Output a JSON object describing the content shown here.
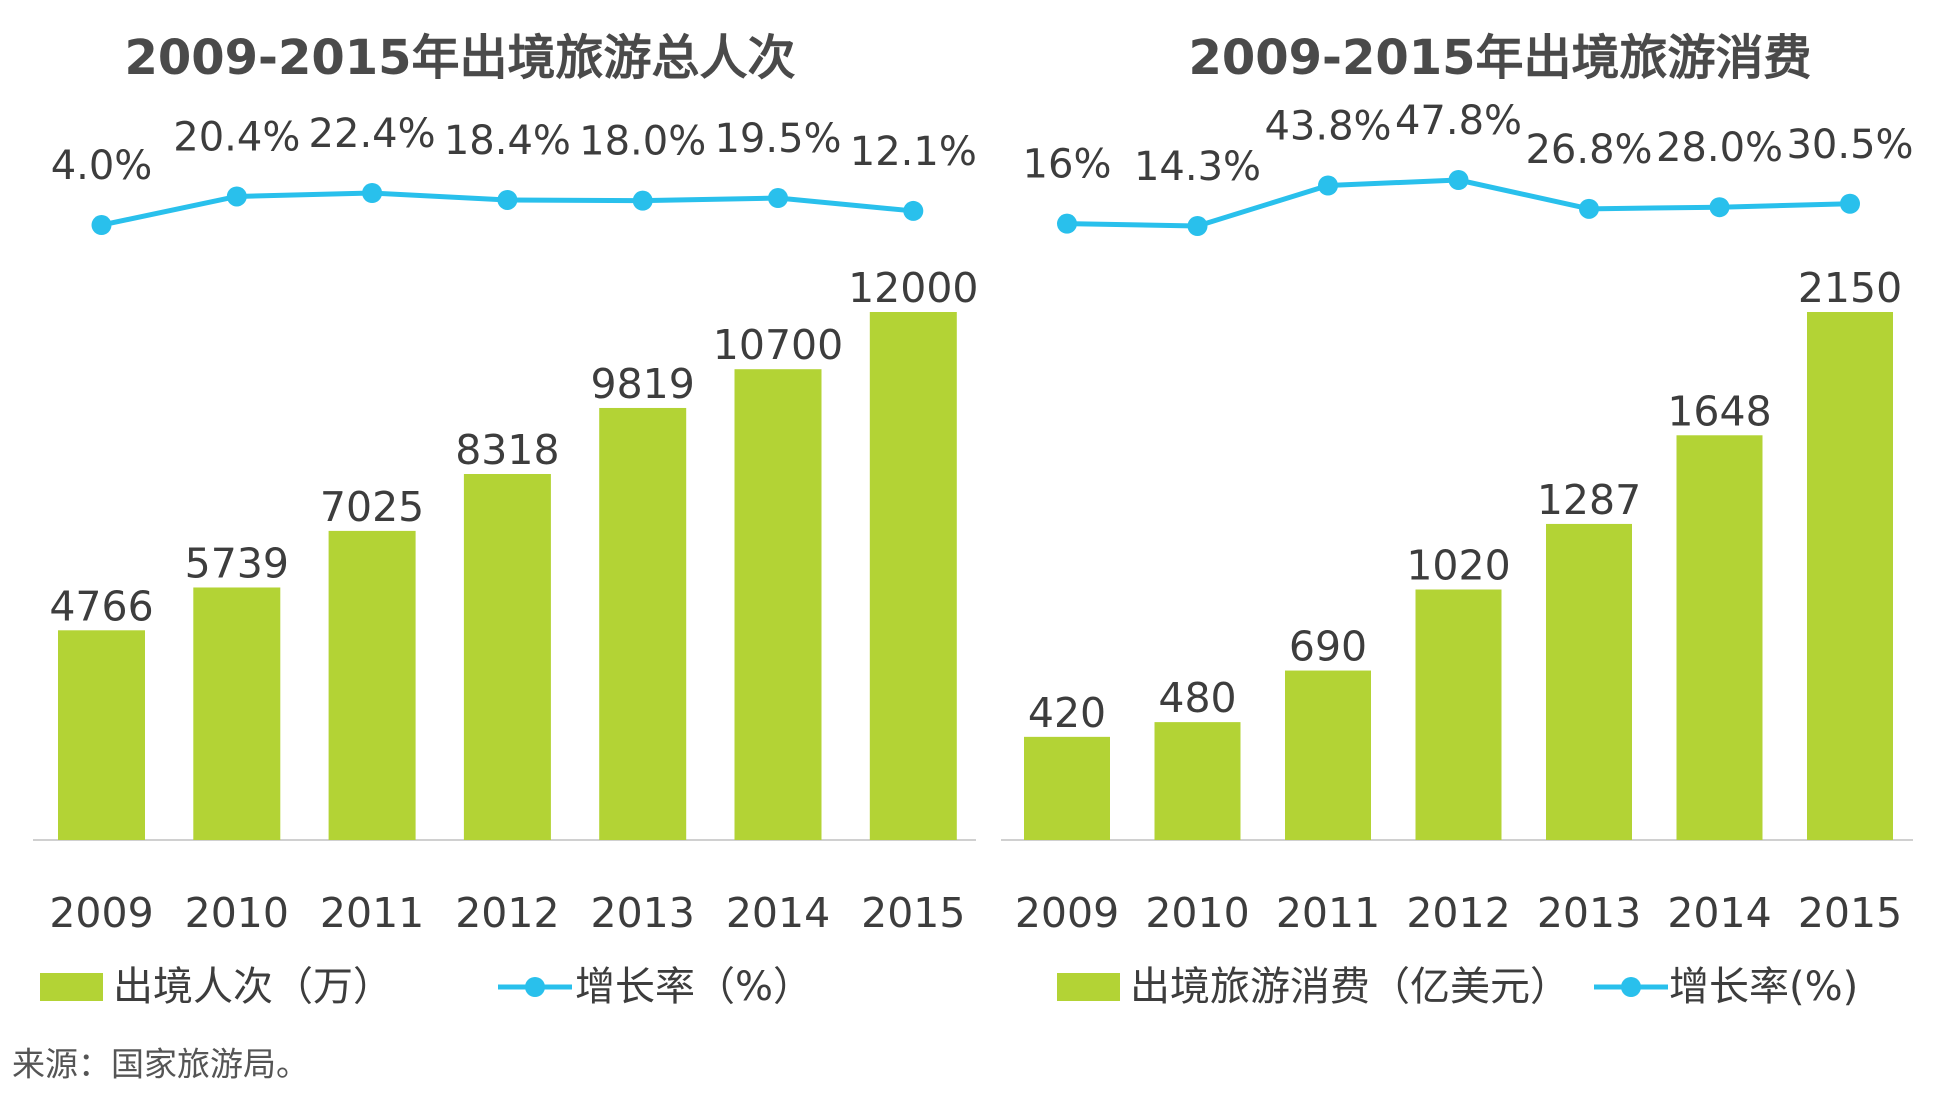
{
  "colors": {
    "bar": "#b3d335",
    "line": "#29c0ec",
    "axis": "#d0d0d0",
    "text": "#3d3d3d",
    "title": "#4a4a4a"
  },
  "chart_data": [
    {
      "type": "bar",
      "title": "2009-2015年出境旅游总人次",
      "categories": [
        "2009",
        "2010",
        "2011",
        "2012",
        "2013",
        "2014",
        "2015"
      ],
      "series": [
        {
          "name": "出境人次（万）",
          "kind": "bar",
          "values": [
            4766,
            5739,
            7025,
            8318,
            9819,
            10700,
            12000
          ],
          "labels": [
            "4766",
            "5739",
            "7025",
            "8318",
            "9819",
            "10700",
            "12000"
          ]
        },
        {
          "name": "增长率（%）",
          "kind": "line",
          "values": [
            4.0,
            20.4,
            22.4,
            18.4,
            18.0,
            19.5,
            12.1
          ],
          "labels": [
            "4.0%",
            "20.4%",
            "22.4%",
            "18.4%",
            "18.0%",
            "19.5%",
            "12.1%"
          ]
        }
      ],
      "ylim": [
        0,
        12000
      ],
      "legend": [
        "出境人次（万）",
        "增长率（%）"
      ],
      "legend_position": "bottom"
    },
    {
      "type": "bar",
      "title": "2009-2015年出境旅游消费",
      "categories": [
        "2009",
        "2010",
        "2011",
        "2012",
        "2013",
        "2014",
        "2015"
      ],
      "series": [
        {
          "name": "出境旅游消费（亿美元）",
          "kind": "bar",
          "values": [
            420,
            480,
            690,
            1020,
            1287,
            1648,
            2150
          ],
          "labels": [
            "420",
            "480",
            "690",
            "1020",
            "1287",
            "1648",
            "2150"
          ]
        },
        {
          "name": "增长率(%)",
          "kind": "line",
          "values": [
            16,
            14.3,
            43.8,
            47.8,
            26.8,
            28.0,
            30.5
          ],
          "labels": [
            "16%",
            "14.3%",
            "43.8%",
            "47.8%",
            "26.8%",
            "28.0%",
            "30.5%"
          ]
        }
      ],
      "ylim": [
        0,
        2150
      ],
      "legend": [
        "出境旅游消费（亿美元）",
        "增长率(%)"
      ],
      "legend_position": "bottom"
    }
  ],
  "source": "来源：国家旅游局。"
}
